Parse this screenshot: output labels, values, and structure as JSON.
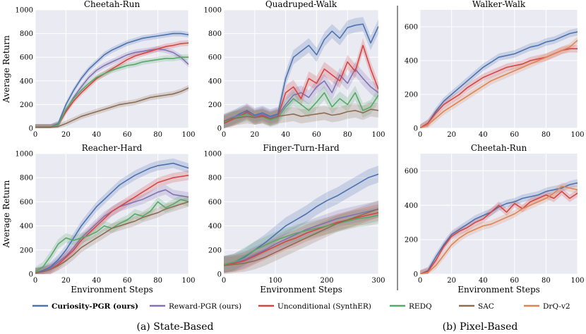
{
  "colors": {
    "curiosity": "#4c72b0",
    "reward": "#8172b3",
    "uncond": "#d64541",
    "redq": "#55a868",
    "sac": "#8c6d52",
    "drq": "#dd8452"
  },
  "legend": [
    {
      "key": "curiosity",
      "label": "Curiosity-PGR (ours)",
      "bold": true
    },
    {
      "key": "reward",
      "label": "Reward-PGR (ours)",
      "bold": false
    },
    {
      "key": "uncond",
      "label": "Unconditional (SynthER)",
      "bold": false
    },
    {
      "key": "redq",
      "label": "REDQ",
      "bold": false
    },
    {
      "key": "sac",
      "label": "SAC",
      "bold": false
    },
    {
      "key": "drq",
      "label": "DrQ-v2",
      "bold": false
    }
  ],
  "captions": {
    "state": "(a) State-Based",
    "pixel": "(b) Pixel-Based"
  },
  "chart_data": [
    {
      "type": "line",
      "title": "Cheetah-Run",
      "xlabel": "",
      "ylabel": "Average Return",
      "xlim": [
        0,
        100
      ],
      "ylim": [
        0,
        1000
      ],
      "xticks": [
        0,
        20,
        40,
        60,
        80,
        100
      ],
      "yticks": [
        0,
        200,
        400,
        600,
        800,
        1000
      ],
      "x": [
        0,
        10,
        15,
        20,
        25,
        30,
        35,
        40,
        45,
        50,
        55,
        60,
        65,
        70,
        75,
        80,
        85,
        90,
        95,
        100
      ],
      "series": [
        {
          "key": "curiosity",
          "values": [
            10,
            10,
            40,
            200,
            320,
            420,
            500,
            560,
            620,
            660,
            690,
            720,
            740,
            760,
            770,
            780,
            790,
            800,
            800,
            790
          ]
        },
        {
          "key": "reward",
          "values": [
            10,
            10,
            30,
            150,
            260,
            350,
            430,
            490,
            530,
            560,
            590,
            620,
            640,
            650,
            660,
            670,
            660,
            640,
            600,
            540
          ]
        },
        {
          "key": "uncond",
          "values": [
            10,
            10,
            30,
            140,
            230,
            300,
            360,
            420,
            460,
            500,
            540,
            580,
            610,
            630,
            650,
            670,
            690,
            700,
            715,
            720
          ]
        },
        {
          "key": "redq",
          "values": [
            10,
            10,
            30,
            160,
            250,
            320,
            380,
            430,
            460,
            490,
            510,
            530,
            540,
            560,
            570,
            580,
            590,
            590,
            600,
            600
          ]
        },
        {
          "key": "sac",
          "values": [
            10,
            10,
            15,
            40,
            70,
            100,
            120,
            140,
            160,
            180,
            200,
            210,
            220,
            240,
            260,
            270,
            280,
            290,
            310,
            340
          ]
        }
      ]
    },
    {
      "type": "line",
      "title": "Quadruped-Walk",
      "xlabel": "",
      "ylabel": "",
      "xlim": [
        0,
        100
      ],
      "ylim": [
        0,
        1000
      ],
      "xticks": [
        0,
        20,
        40,
        60,
        80,
        100
      ],
      "yticks": [
        0,
        200,
        400,
        600,
        800,
        1000
      ],
      "x": [
        0,
        5,
        10,
        15,
        20,
        25,
        30,
        35,
        40,
        45,
        50,
        55,
        60,
        65,
        70,
        75,
        80,
        85,
        90,
        95,
        100
      ],
      "series": [
        {
          "key": "curiosity",
          "values": [
            50,
            80,
            120,
            150,
            110,
            130,
            100,
            120,
            420,
            600,
            650,
            700,
            620,
            750,
            820,
            760,
            850,
            870,
            880,
            720,
            860
          ]
        },
        {
          "key": "reward",
          "values": [
            60,
            90,
            110,
            130,
            100,
            120,
            90,
            110,
            200,
            280,
            300,
            260,
            350,
            400,
            300,
            450,
            380,
            500,
            420,
            350,
            300
          ]
        },
        {
          "key": "uncond",
          "values": [
            40,
            70,
            100,
            140,
            90,
            110,
            80,
            100,
            300,
            350,
            250,
            420,
            380,
            500,
            450,
            400,
            560,
            480,
            700,
            500,
            330
          ]
        },
        {
          "key": "redq",
          "values": [
            50,
            80,
            100,
            120,
            90,
            100,
            70,
            90,
            180,
            250,
            200,
            150,
            220,
            300,
            180,
            250,
            200,
            300,
            150,
            180,
            280
          ]
        },
        {
          "key": "sac",
          "values": [
            60,
            80,
            90,
            100,
            90,
            100,
            80,
            100,
            110,
            120,
            100,
            110,
            120,
            130,
            110,
            120,
            140,
            150,
            130,
            160,
            150
          ]
        }
      ]
    },
    {
      "type": "line",
      "title": "Walker-Walk",
      "xlabel": "",
      "ylabel": "",
      "xlim": [
        0,
        100
      ],
      "ylim": [
        0,
        700
      ],
      "xticks": [
        0,
        20,
        40,
        60,
        80,
        100
      ],
      "yticks": [
        0,
        200,
        400,
        600
      ],
      "x": [
        0,
        5,
        10,
        15,
        20,
        25,
        30,
        35,
        40,
        45,
        50,
        55,
        60,
        65,
        70,
        75,
        80,
        85,
        90,
        95,
        100
      ],
      "series": [
        {
          "key": "curiosity",
          "values": [
            0,
            30,
            100,
            160,
            200,
            240,
            280,
            320,
            360,
            390,
            420,
            430,
            440,
            460,
            480,
            490,
            510,
            520,
            540,
            560,
            570
          ]
        },
        {
          "key": "uncond",
          "values": [
            0,
            30,
            90,
            140,
            170,
            200,
            240,
            270,
            300,
            320,
            340,
            360,
            370,
            380,
            400,
            410,
            420,
            440,
            460,
            470,
            470
          ]
        },
        {
          "key": "drq",
          "values": [
            0,
            20,
            60,
            100,
            130,
            160,
            190,
            220,
            250,
            280,
            300,
            320,
            340,
            360,
            380,
            400,
            420,
            440,
            460,
            480,
            520
          ]
        }
      ]
    },
    {
      "type": "line",
      "title": "Reacher-Hard",
      "xlabel": "Environment Steps",
      "ylabel": "Average Return",
      "xlim": [
        0,
        100
      ],
      "ylim": [
        0,
        1000
      ],
      "xticks": [
        0,
        20,
        40,
        60,
        80,
        100
      ],
      "yticks": [
        0,
        200,
        400,
        600,
        800,
        1000
      ],
      "x": [
        0,
        5,
        10,
        15,
        20,
        25,
        30,
        35,
        40,
        45,
        50,
        55,
        60,
        65,
        70,
        75,
        80,
        85,
        90,
        95,
        100
      ],
      "series": [
        {
          "key": "curiosity",
          "values": [
            10,
            30,
            60,
            120,
            200,
            300,
            400,
            480,
            560,
            620,
            680,
            740,
            780,
            820,
            850,
            880,
            900,
            910,
            920,
            900,
            880
          ]
        },
        {
          "key": "reward",
          "values": [
            10,
            20,
            50,
            100,
            150,
            220,
            300,
            360,
            420,
            480,
            520,
            560,
            580,
            600,
            620,
            650,
            680,
            700,
            660,
            650,
            640
          ]
        },
        {
          "key": "uncond",
          "values": [
            10,
            20,
            40,
            80,
            140,
            200,
            280,
            340,
            400,
            460,
            520,
            560,
            600,
            640,
            680,
            720,
            760,
            780,
            800,
            810,
            820
          ]
        },
        {
          "key": "redq",
          "values": [
            20,
            60,
            150,
            250,
            300,
            280,
            300,
            320,
            350,
            400,
            380,
            420,
            450,
            500,
            480,
            520,
            600,
            550,
            580,
            620,
            600
          ]
        },
        {
          "key": "sac",
          "values": [
            10,
            20,
            40,
            70,
            110,
            160,
            220,
            260,
            300,
            340,
            380,
            400,
            420,
            440,
            470,
            490,
            510,
            540,
            560,
            580,
            600
          ]
        }
      ]
    },
    {
      "type": "line",
      "title": "Finger-Turn-Hard",
      "xlabel": "Environment Steps",
      "ylabel": "",
      "xlim": [
        0,
        300
      ],
      "ylim": [
        0,
        1000
      ],
      "xticks": [
        0,
        100,
        200,
        300
      ],
      "yticks": [
        0,
        200,
        400,
        600,
        800,
        1000
      ],
      "x": [
        0,
        20,
        40,
        60,
        80,
        100,
        120,
        140,
        160,
        180,
        200,
        220,
        240,
        260,
        280,
        300
      ],
      "series": [
        {
          "key": "curiosity",
          "values": [
            80,
            100,
            140,
            200,
            260,
            330,
            400,
            450,
            500,
            560,
            610,
            650,
            700,
            750,
            800,
            830
          ]
        },
        {
          "key": "reward",
          "values": [
            80,
            90,
            120,
            160,
            200,
            250,
            290,
            330,
            370,
            400,
            430,
            460,
            480,
            500,
            520,
            540
          ]
        },
        {
          "key": "uncond",
          "values": [
            80,
            90,
            110,
            150,
            190,
            230,
            270,
            300,
            340,
            370,
            400,
            430,
            450,
            470,
            490,
            510
          ]
        },
        {
          "key": "redq",
          "values": [
            80,
            100,
            150,
            200,
            240,
            280,
            310,
            340,
            360,
            380,
            400,
            420,
            440,
            460,
            470,
            490
          ]
        },
        {
          "key": "sac",
          "values": [
            70,
            80,
            90,
            110,
            140,
            180,
            220,
            260,
            300,
            340,
            380,
            420,
            450,
            480,
            510,
            540
          ]
        }
      ]
    },
    {
      "type": "line",
      "title": "Cheetah-Run",
      "xlabel": "Environment Steps",
      "ylabel": "",
      "xlim": [
        0,
        100
      ],
      "ylim": [
        0,
        700
      ],
      "xticks": [
        0,
        20,
        40,
        60,
        80,
        100
      ],
      "yticks": [
        0,
        200,
        400,
        600
      ],
      "x": [
        0,
        5,
        10,
        15,
        20,
        25,
        30,
        35,
        40,
        45,
        50,
        55,
        60,
        65,
        70,
        75,
        80,
        85,
        90,
        95,
        100
      ],
      "series": [
        {
          "key": "curiosity",
          "values": [
            0,
            20,
            100,
            170,
            230,
            260,
            290,
            320,
            340,
            360,
            390,
            410,
            420,
            440,
            450,
            460,
            480,
            490,
            500,
            520,
            530
          ]
        },
        {
          "key": "uncond",
          "values": [
            0,
            15,
            80,
            160,
            220,
            250,
            270,
            300,
            320,
            360,
            400,
            360,
            410,
            380,
            420,
            440,
            460,
            440,
            480,
            440,
            470
          ]
        },
        {
          "key": "drq",
          "values": [
            0,
            10,
            50,
            110,
            170,
            210,
            240,
            260,
            280,
            290,
            310,
            330,
            350,
            380,
            400,
            420,
            440,
            470,
            510,
            500,
            490
          ]
        }
      ]
    }
  ]
}
